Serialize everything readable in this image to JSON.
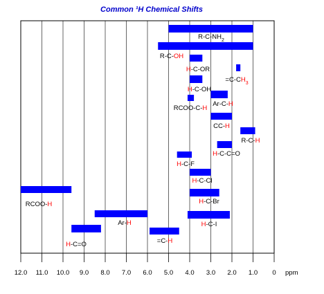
{
  "chart_data": {
    "type": "bar",
    "orientation": "horizontal-range",
    "title": "Common ¹H Chemical Shifts",
    "xlabel": "ppm",
    "xlim": [
      12.0,
      0.0
    ],
    "x_reversed": true,
    "x_ticks": [
      "12.0",
      "11.0",
      "10.0",
      "9.0",
      "8.0",
      "7.0",
      "6.0",
      "5.0",
      "4.0",
      "3.0",
      "2.0",
      "1.0",
      "0"
    ],
    "grid": "vertical",
    "bar_color": "#0000ff",
    "highlight_color": "#ff0000",
    "title_color": "#0000cc",
    "series": [
      {
        "from": 5.0,
        "to": 1.0,
        "label": [
          {
            "t": "R-C-NH",
            "c": "k"
          },
          {
            "t": "2",
            "c": "k",
            "sub": true
          }
        ]
      },
      {
        "from": 5.5,
        "to": 1.0,
        "label": [
          {
            "t": "R-C-",
            "c": "k"
          },
          {
            "t": "OH",
            "c": "r"
          }
        ]
      },
      {
        "from": 4.0,
        "to": 3.4,
        "label": [
          {
            "t": "H",
            "c": "r"
          },
          {
            "t": "-C-OR",
            "c": "k"
          }
        ]
      },
      {
        "from": 1.8,
        "to": 1.6,
        "label": [
          {
            "t": "=C-C",
            "c": "k"
          },
          {
            "t": "H",
            "c": "r"
          },
          {
            "t": "3",
            "c": "r",
            "sub": true
          }
        ]
      },
      {
        "from": 4.0,
        "to": 3.4,
        "label": [
          {
            "t": "H",
            "c": "r"
          },
          {
            "t": "-C-OH",
            "c": "k"
          }
        ]
      },
      {
        "from": 3.0,
        "to": 2.2,
        "label": [
          {
            "t": "Ar-C-",
            "c": "k"
          },
          {
            "t": "H",
            "c": "r"
          }
        ]
      },
      {
        "from": 4.1,
        "to": 3.8,
        "label": [
          {
            "t": "RCOO-C-",
            "c": "k"
          },
          {
            "t": "H",
            "c": "r"
          }
        ]
      },
      {
        "from": 3.0,
        "to": 2.0,
        "label": [
          {
            "t": "CC-",
            "c": "k"
          },
          {
            "t": "H",
            "c": "r"
          }
        ]
      },
      {
        "from": 1.6,
        "to": 0.9,
        "label": [
          {
            "t": "R-C-",
            "c": "k"
          },
          {
            "t": "H",
            "c": "r"
          }
        ]
      },
      {
        "from": 2.7,
        "to": 2.0,
        "label": [
          {
            "t": "H",
            "c": "r"
          },
          {
            "t": "-C-C=O",
            "c": "k"
          }
        ]
      },
      {
        "from": 4.6,
        "to": 3.9,
        "label": [
          {
            "t": "H",
            "c": "r"
          },
          {
            "t": "-C-F",
            "c": "k"
          }
        ]
      },
      {
        "from": 4.0,
        "to": 3.0,
        "label": [
          {
            "t": "H",
            "c": "r"
          },
          {
            "t": "-C-Cl",
            "c": "k"
          }
        ]
      },
      {
        "from": 12.0,
        "to": 9.6,
        "label": [
          {
            "t": "RCOO-",
            "c": "k"
          },
          {
            "t": "H",
            "c": "r"
          }
        ]
      },
      {
        "from": 4.0,
        "to": 2.6,
        "label": [
          {
            "t": "H",
            "c": "r"
          },
          {
            "t": "-C-Br",
            "c": "k"
          }
        ]
      },
      {
        "from": 8.5,
        "to": 6.0,
        "label": [
          {
            "t": "Ar-",
            "c": "k"
          },
          {
            "t": "H",
            "c": "r"
          }
        ]
      },
      {
        "from": 4.1,
        "to": 2.1,
        "label": [
          {
            "t": "H",
            "c": "r"
          },
          {
            "t": "-C-I",
            "c": "k"
          }
        ]
      },
      {
        "from": 9.6,
        "to": 8.2,
        "label": [
          {
            "t": "H",
            "c": "r"
          },
          {
            "t": "-C=O",
            "c": "k"
          }
        ]
      },
      {
        "from": 5.9,
        "to": 4.5,
        "label": [
          {
            "t": "=C-",
            "c": "k"
          },
          {
            "t": "H",
            "c": "r"
          }
        ]
      }
    ]
  }
}
